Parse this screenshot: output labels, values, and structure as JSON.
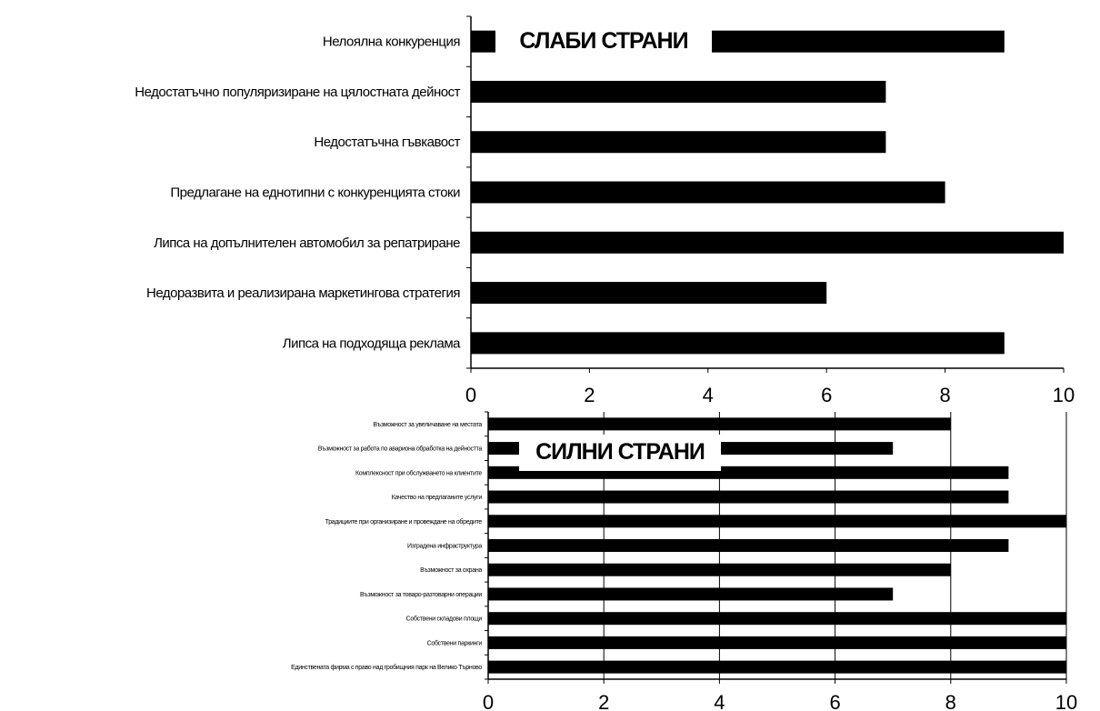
{
  "chart_data": [
    {
      "type": "bar",
      "orientation": "horizontal",
      "title": "СЛАБИ СТРАНИ",
      "categories": [
        "Нелоялна конкуренция",
        "Недостатъчно популяризиране на цялостната дейност",
        "Недостатъчна гъвкавост",
        "Предлагане на еднотипни с конкуренцията стоки",
        "Липса на допълнителен автомобил за репатриране",
        "Недоразвита и реализирана маркетингова стратегия",
        "Липса на подходяща реклама"
      ],
      "values": [
        9,
        7,
        7,
        8,
        10,
        6,
        9
      ],
      "xlim": [
        0,
        10
      ],
      "xticks": [
        "0",
        "2",
        "4",
        "6",
        "8",
        "10"
      ],
      "grid": false,
      "bar_color": "#000000"
    },
    {
      "type": "bar",
      "orientation": "horizontal",
      "title": "СИЛНИ СТРАНИ",
      "categories": [
        "Възможност за увеличаване на местата",
        "Възможност за работа по авариона обработка на дейността",
        "Комплексност при обслужването на клиентите",
        "Качество на предлаганите услуги",
        "Традициите при организиране и провеждане на обредите",
        "Изградена инфраструктура",
        "Възможност за охрана",
        "Възможност за товаро-разтоварни операции",
        "Собствени складови площи",
        "Собствени паркинги",
        "Единствената фирма с право над гробищния парк на Велико Търново"
      ],
      "values": [
        8,
        7,
        9,
        9,
        10,
        9,
        8,
        7,
        10,
        10,
        10
      ],
      "xlim": [
        0,
        10
      ],
      "xticks": [
        "0",
        "2",
        "4",
        "6",
        "8",
        "10"
      ],
      "grid": true,
      "bar_color": "#000000"
    }
  ]
}
